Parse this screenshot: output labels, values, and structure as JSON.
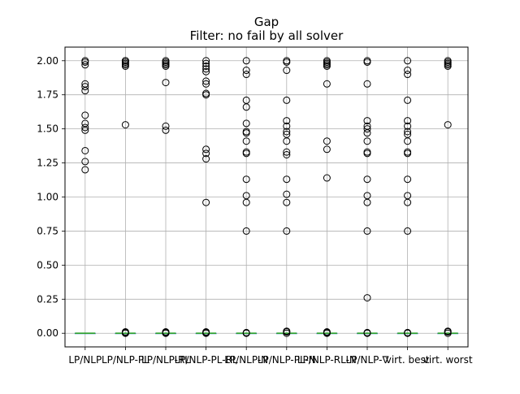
{
  "chart_data": {
    "type": "box",
    "title": "Gap",
    "subtitle": "Filter: no fail by all solver",
    "xlabel": "",
    "ylabel": "",
    "ylim": [
      -0.1,
      2.1
    ],
    "y_ticks": [
      0.0,
      0.25,
      0.5,
      0.75,
      1.0,
      1.25,
      1.5,
      1.75,
      2.0
    ],
    "y_tick_labels": [
      "0.00",
      "0.25",
      "0.50",
      "0.75",
      "1.00",
      "1.25",
      "1.50",
      "1.75",
      "2.00"
    ],
    "grid": true,
    "categories": [
      "LP/NLP",
      "LP/NLP-PL",
      "LP/NLP-RL",
      "LP/NLP-PL-RL",
      "LP/NLP-N",
      "LP/NLP-PL-N",
      "LP/NLP-RL-N",
      "LP/NLP-∇",
      "virt. best",
      "virt. worst"
    ],
    "series": [
      {
        "name": "LP/NLP",
        "median": 0.0,
        "q1": 0.0,
        "q3": 0.0,
        "whisker_low": 0.0,
        "whisker_high": 0.0,
        "outliers": [
          2.0,
          1.99,
          1.97,
          1.83,
          1.81,
          1.78,
          1.6,
          1.54,
          1.51,
          1.49,
          1.34,
          1.26,
          1.2
        ]
      },
      {
        "name": "LP/NLP-PL",
        "median": 0.0,
        "q1": 0.0,
        "q3": 0.0,
        "whisker_low": 0.0,
        "whisker_high": 0.0,
        "outliers": [
          2.0,
          2.0,
          1.99,
          1.98,
          1.97,
          1.96,
          1.53,
          0.0,
          0.01,
          0.005
        ]
      },
      {
        "name": "LP/NLP-RL",
        "median": 0.0,
        "q1": 0.0,
        "q3": 0.0,
        "whisker_low": 0.0,
        "whisker_high": 0.0,
        "outliers": [
          2.0,
          1.99,
          1.98,
          1.97,
          1.96,
          1.84,
          1.52,
          1.49,
          0.0,
          0.01,
          0.005
        ]
      },
      {
        "name": "LP/NLP-PL-RL",
        "median": 0.0,
        "q1": 0.0,
        "q3": 0.0,
        "whisker_low": 0.0,
        "whisker_high": 0.0,
        "outliers": [
          2.0,
          1.98,
          1.96,
          1.94,
          1.92,
          1.85,
          1.83,
          1.76,
          1.75,
          1.35,
          1.32,
          1.28,
          0.96,
          0.0,
          0.01,
          0.005
        ]
      },
      {
        "name": "LP/NLP-N",
        "median": 0.0,
        "q1": 0.0,
        "q3": 0.0,
        "whisker_low": 0.0,
        "whisker_high": 0.0,
        "outliers": [
          2.0,
          1.93,
          1.9,
          1.71,
          1.66,
          1.54,
          1.48,
          1.47,
          1.41,
          1.33,
          1.32,
          1.13,
          1.01,
          0.96,
          0.75,
          0.0,
          0.005
        ]
      },
      {
        "name": "LP/NLP-PL-N",
        "median": 0.0,
        "q1": 0.0,
        "q3": 0.0,
        "whisker_low": 0.0,
        "whisker_high": 0.0,
        "outliers": [
          2.0,
          1.99,
          1.93,
          1.71,
          1.56,
          1.52,
          1.48,
          1.46,
          1.41,
          1.33,
          1.31,
          1.13,
          1.02,
          0.96,
          0.75,
          0.0,
          0.01,
          0.015
        ]
      },
      {
        "name": "LP/NLP-RL-N",
        "median": 0.0,
        "q1": 0.0,
        "q3": 0.0,
        "whisker_low": 0.0,
        "whisker_high": 0.0,
        "outliers": [
          2.0,
          1.99,
          1.98,
          1.97,
          1.96,
          1.83,
          1.41,
          1.35,
          1.14,
          0.0,
          0.01,
          0.005
        ]
      },
      {
        "name": "LP/NLP-∇",
        "median": 0.0,
        "q1": 0.0,
        "q3": 0.0,
        "whisker_low": 0.0,
        "whisker_high": 0.0,
        "outliers": [
          2.0,
          1.99,
          1.83,
          1.56,
          1.52,
          1.5,
          1.47,
          1.41,
          1.33,
          1.32,
          1.13,
          1.01,
          0.96,
          0.75,
          0.26,
          0.0,
          0.005
        ]
      },
      {
        "name": "virt. best",
        "median": 0.0,
        "q1": 0.0,
        "q3": 0.0,
        "whisker_low": 0.0,
        "whisker_high": 0.0,
        "outliers": [
          2.0,
          1.93,
          1.9,
          1.71,
          1.56,
          1.52,
          1.48,
          1.46,
          1.41,
          1.33,
          1.32,
          1.13,
          1.01,
          0.96,
          0.75,
          0.0,
          0.005
        ]
      },
      {
        "name": "virt. worst",
        "median": 0.0,
        "q1": 0.0,
        "q3": 0.0,
        "whisker_low": 0.0,
        "whisker_high": 0.0,
        "outliers": [
          2.0,
          1.99,
          1.98,
          1.97,
          1.96,
          1.53,
          0.0,
          0.01,
          0.015
        ]
      }
    ],
    "colors": {
      "box": "#1f77b4",
      "median": "#2ca02c",
      "whisker": "#1f77b4",
      "grid": "#b0b0b0",
      "outlier": "#000000",
      "axes": "#000000"
    }
  }
}
